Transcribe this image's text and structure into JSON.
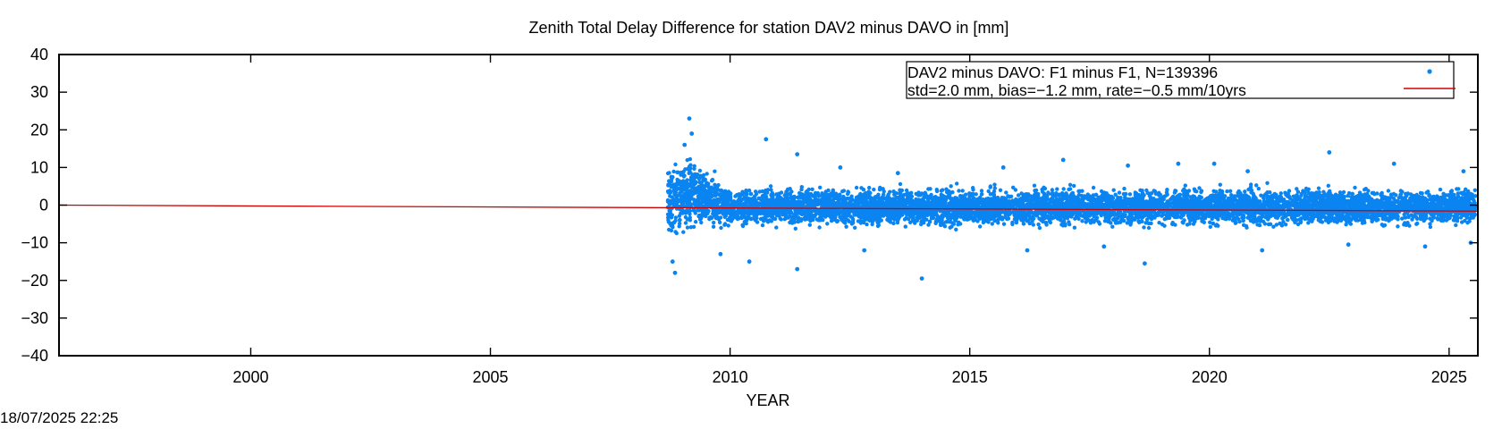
{
  "timestamp": "18/07/2025 22:25",
  "chart_data": {
    "type": "scatter",
    "title": "Zenith Total Delay Difference for station DAV2 minus DAVO in [mm]",
    "xlabel": "YEAR",
    "ylabel": "",
    "xlim": [
      1996.0,
      2025.6
    ],
    "ylim": [
      -40,
      40
    ],
    "x_ticks": [
      2000,
      2005,
      2010,
      2015,
      2020,
      2025
    ],
    "x_tick_labels": [
      "2000",
      "2005",
      "2010",
      "2015",
      "2020",
      "2025"
    ],
    "y_ticks": [
      -40,
      -30,
      -20,
      -10,
      0,
      10,
      20,
      30,
      40
    ],
    "y_tick_labels": [
      "−40",
      "−30",
      "−20",
      "−10",
      "0",
      "10",
      "20",
      "30",
      "40"
    ],
    "grid": false,
    "legend_position": "top-right",
    "series": [
      {
        "name": "DAV2 minus DAVO: F1 minus F1, N=139396",
        "kind": "points",
        "color": "#0a84f0",
        "x_range": [
          2008.7,
          2025.55
        ],
        "n": 139396,
        "std": 2.0,
        "bias": -1.2,
        "band_envelope": [
          {
            "x": 2008.7,
            "lower": -7,
            "upper": 10
          },
          {
            "x": 2009.2,
            "lower": -6,
            "upper": 11
          },
          {
            "x": 2010.0,
            "lower": -5,
            "upper": 4
          },
          {
            "x": 2012.0,
            "lower": -5,
            "upper": 4
          },
          {
            "x": 2015.0,
            "lower": -5,
            "upper": 4
          },
          {
            "x": 2018.0,
            "lower": -5,
            "upper": 4
          },
          {
            "x": 2021.0,
            "lower": -5,
            "upper": 4
          },
          {
            "x": 2025.55,
            "lower": -5,
            "upper": 4
          }
        ],
        "outliers": [
          {
            "x": 2009.15,
            "y": 23
          },
          {
            "x": 2009.2,
            "y": 19
          },
          {
            "x": 2009.05,
            "y": 16
          },
          {
            "x": 2008.85,
            "y": -18
          },
          {
            "x": 2008.8,
            "y": -15
          },
          {
            "x": 2010.75,
            "y": 17.5
          },
          {
            "x": 2011.4,
            "y": 13.5
          },
          {
            "x": 2011.4,
            "y": -17
          },
          {
            "x": 2009.8,
            "y": -13
          },
          {
            "x": 2010.4,
            "y": -15
          },
          {
            "x": 2014.0,
            "y": -19.5
          },
          {
            "x": 2016.95,
            "y": 12
          },
          {
            "x": 2018.65,
            "y": -15.5
          },
          {
            "x": 2019.35,
            "y": 11
          },
          {
            "x": 2020.1,
            "y": 11
          },
          {
            "x": 2022.5,
            "y": 14
          },
          {
            "x": 2023.85,
            "y": 11
          },
          {
            "x": 2012.8,
            "y": -12
          },
          {
            "x": 2015.7,
            "y": 10
          },
          {
            "x": 2018.3,
            "y": 10.5
          },
          {
            "x": 2021.1,
            "y": -12
          },
          {
            "x": 2024.5,
            "y": -11
          },
          {
            "x": 2025.3,
            "y": 9
          },
          {
            "x": 2025.45,
            "y": -10
          },
          {
            "x": 2013.5,
            "y": 8.5
          },
          {
            "x": 2017.8,
            "y": -11
          },
          {
            "x": 2020.8,
            "y": 9
          },
          {
            "x": 2012.3,
            "y": 10
          },
          {
            "x": 2016.2,
            "y": -12
          },
          {
            "x": 2022.9,
            "y": -10.5
          }
        ]
      },
      {
        "name": "std=2.0 mm, bias=−1.2 mm, rate=−0.5 mm/10yrs",
        "kind": "line",
        "color": "#d00000",
        "rate": "-0.5 mm/10yrs",
        "x": [
          1996.0,
          2025.6
        ],
        "y": [
          0.0,
          -1.6
        ]
      }
    ]
  }
}
